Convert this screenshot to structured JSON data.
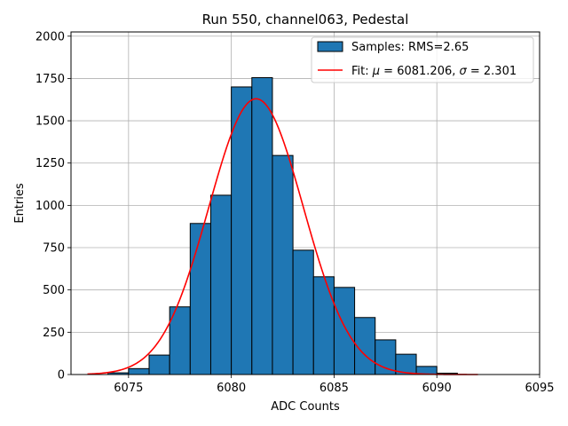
{
  "chart_data": {
    "type": "bar",
    "title": "Run 550, channel063, Pedestal",
    "xlabel": "ADC Counts",
    "ylabel": "Entries",
    "xlim": [
      6072.2,
      6095
    ],
    "ylim": [
      0,
      2025
    ],
    "xticks": [
      6075,
      6080,
      6085,
      6090,
      6095
    ],
    "xtick_labels": [
      "6075",
      "6080",
      "6085",
      "6090",
      "6095"
    ],
    "yticks": [
      0,
      250,
      500,
      750,
      1000,
      1250,
      1500,
      1750,
      2000
    ],
    "ytick_labels": [
      "0",
      "250",
      "500",
      "750",
      "1000",
      "1250",
      "1500",
      "1750",
      "2000"
    ],
    "grid": true,
    "legend_position": "top-right",
    "bar_color": "#1f77b4",
    "fit_color": "#ff0000",
    "histogram": {
      "name": "Samples: RMS=2.65",
      "bins": [
        {
          "x0": 6074,
          "x1": 6075,
          "count": 10
        },
        {
          "x0": 6075,
          "x1": 6076,
          "count": 35
        },
        {
          "x0": 6076,
          "x1": 6077,
          "count": 115
        },
        {
          "x0": 6077,
          "x1": 6078,
          "count": 400
        },
        {
          "x0": 6078,
          "x1": 6079,
          "count": 893
        },
        {
          "x0": 6079,
          "x1": 6080,
          "count": 1060
        },
        {
          "x0": 6080,
          "x1": 6081,
          "count": 1700
        },
        {
          "x0": 6081,
          "x1": 6082,
          "count": 1755
        },
        {
          "x0": 6082,
          "x1": 6083,
          "count": 1295
        },
        {
          "x0": 6083,
          "x1": 6084,
          "count": 735
        },
        {
          "x0": 6084,
          "x1": 6085,
          "count": 578
        },
        {
          "x0": 6085,
          "x1": 6086,
          "count": 515
        },
        {
          "x0": 6086,
          "x1": 6087,
          "count": 337
        },
        {
          "x0": 6087,
          "x1": 6088,
          "count": 205
        },
        {
          "x0": 6088,
          "x1": 6089,
          "count": 120
        },
        {
          "x0": 6089,
          "x1": 6090,
          "count": 48
        },
        {
          "x0": 6090,
          "x1": 6091,
          "count": 8
        }
      ]
    },
    "fit": {
      "name_prefix": "Fit: ",
      "mu_symbol": "μ",
      "name_mid": " = 6081.206, ",
      "sigma_symbol": "σ",
      "name_suffix": " = 2.301",
      "mu": 6081.206,
      "sigma": 2.301,
      "amplitude": 1630,
      "x_range": [
        6073,
        6092
      ]
    }
  }
}
